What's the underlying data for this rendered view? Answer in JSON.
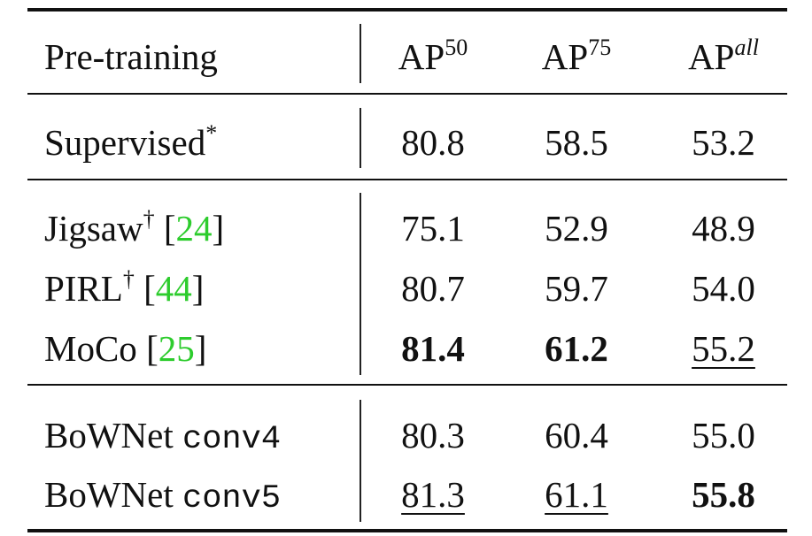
{
  "header": {
    "pretraining": "Pre-training",
    "ap50": {
      "base": "AP",
      "sup": "50"
    },
    "ap75": {
      "base": "AP",
      "sup": "75"
    },
    "apall": {
      "base": "AP",
      "sup": "all"
    }
  },
  "rows": [
    {
      "name": "Supervised",
      "mark": "*",
      "cite": "",
      "mono": "",
      "ap50": "80.8",
      "ap75": "58.5",
      "apall": "53.2"
    },
    {
      "name": "Jigsaw",
      "mark": "†",
      "cite": "24",
      "mono": "",
      "ap50": "75.1",
      "ap75": "52.9",
      "apall": "48.9"
    },
    {
      "name": "PIRL",
      "mark": "†",
      "cite": "44",
      "mono": "",
      "ap50": "80.7",
      "ap75": "59.7",
      "apall": "54.0"
    },
    {
      "name": "MoCo",
      "mark": "",
      "cite": "25",
      "mono": "",
      "ap50": "81.4",
      "ap75": "61.2",
      "apall": "55.2"
    },
    {
      "name": "BoWNet",
      "mark": "",
      "cite": "",
      "mono": "conv4",
      "ap50": "80.3",
      "ap75": "60.4",
      "apall": "55.0"
    },
    {
      "name": "BoWNet",
      "mark": "",
      "cite": "",
      "mono": "conv5",
      "ap50": "81.3",
      "ap75": "61.1",
      "apall": "55.8"
    }
  ],
  "colors": {
    "citation": "#2dcc2d",
    "text": "#111111"
  }
}
